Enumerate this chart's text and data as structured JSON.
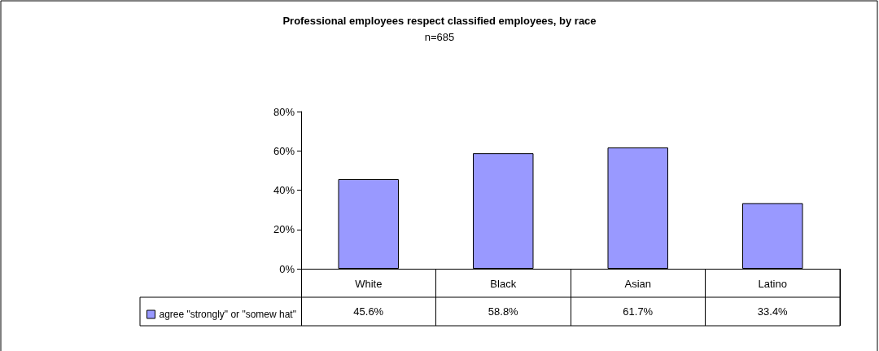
{
  "chart_data": {
    "type": "bar",
    "title": "Professional employees respect classified employees, by race",
    "subtitle": "n=685",
    "categories": [
      "White",
      "Black",
      "Asian",
      "Latino"
    ],
    "series": [
      {
        "name": "agree \"strongly\" or \"somew hat\"",
        "color": "#9999ff",
        "values": [
          45.6,
          58.8,
          61.7,
          33.4
        ],
        "value_labels": [
          "45.6%",
          "58.8%",
          "61.7%",
          "33.4%"
        ]
      }
    ],
    "ylim": [
      0,
      80
    ],
    "yticks": [
      {
        "value": 0,
        "label": "0%"
      },
      {
        "value": 20,
        "label": "20%"
      },
      {
        "value": 40,
        "label": "40%"
      },
      {
        "value": 60,
        "label": "60%"
      },
      {
        "value": 80,
        "label": "80%"
      }
    ],
    "grid": false,
    "legend": "bottom left"
  }
}
